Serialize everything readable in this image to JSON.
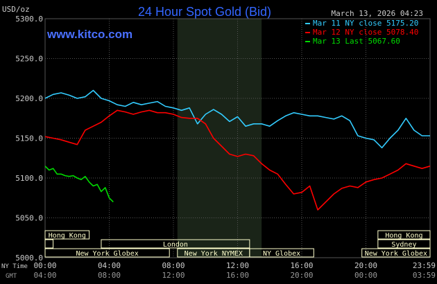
{
  "header": {
    "unit_label": "USD/oz",
    "title": "24 Hour Spot Gold (Bid)",
    "timestamp": "March 13, 2026 04:23",
    "watermark": "www.kitco.com"
  },
  "legend": [
    {
      "label": "Mar 11 NY close 5175.20",
      "color": "#33ccff"
    },
    {
      "label": "Mar 12 NY close 5078.40",
      "color": "#ff0000"
    },
    {
      "label": "Mar 13 Last 5067.60",
      "color": "#00dd00"
    }
  ],
  "footer": {
    "ny_time_label": "NY Time",
    "gmt_label": "GMT"
  },
  "sessions": {
    "row1": [
      {
        "label": "Hong Kong",
        "start": 0.0,
        "end": 2.75
      },
      {
        "label": "Hong Kong",
        "start": 20.75,
        "end": 24.0
      }
    ],
    "row2": [
      {
        "label": "",
        "start": 0.0,
        "end": 0.5
      },
      {
        "label": "London",
        "start": 3.5,
        "end": 12.75
      },
      {
        "label": "Sydney",
        "start": 20.75,
        "end": 24.0
      }
    ],
    "row3": [
      {
        "label": "New York Globex",
        "start": 0.0,
        "end": 7.75
      },
      {
        "label": "New York NYMEX",
        "start": 8.25,
        "end": 12.75
      },
      {
        "label": "NY Globex",
        "start": 12.75,
        "end": 16.75
      },
      {
        "label": "New York Globex",
        "start": 19.75,
        "end": 24.0
      }
    ]
  },
  "colors": {
    "background": "#000000",
    "grid": "#555555",
    "shade": "#1a2418",
    "title": "#3366ff",
    "session_fill": "#ffffcc",
    "session_border": "#999999",
    "text": "#cccccc"
  },
  "chart_data": {
    "type": "line",
    "ylim": [
      5000,
      5300
    ],
    "y_ticks": [
      5000,
      5050,
      5100,
      5150,
      5200,
      5250,
      5300
    ],
    "y_tick_labels": [
      "5000.0",
      "5050.0",
      "5100.0",
      "5150.0",
      "5200.0",
      "5250.0",
      "5300.0"
    ],
    "xlim": [
      0,
      24
    ],
    "x_ticks": [
      0,
      4,
      8,
      12,
      16,
      20,
      24
    ],
    "x_tick_labels": [
      "00:00",
      "04:00",
      "08:00",
      "12:00",
      "16:00",
      "20:00",
      "23:59"
    ],
    "x_tick_labels_gmt": [
      "04:00",
      "08:00",
      "12:00",
      "16:00",
      "20:00",
      "00:00",
      "03:59"
    ],
    "nymex_shade": [
      8.25,
      13.5
    ],
    "grid": true,
    "legend_position": "top-right",
    "series": [
      {
        "name": "Mar 11 NY close 5175.20",
        "color": "#33ccff",
        "x": [
          0,
          0.5,
          1,
          1.5,
          2,
          2.5,
          3,
          3.5,
          4,
          4.5,
          5,
          5.5,
          6,
          6.5,
          7,
          7.5,
          8,
          8.5,
          9,
          9.5,
          10,
          10.5,
          11,
          11.5,
          12,
          12.5,
          13,
          13.5,
          14,
          14.5,
          15,
          15.5,
          16,
          16.5,
          17,
          17.5,
          18,
          18.5,
          19,
          19.5,
          20,
          20.5,
          21,
          21.5,
          22,
          22.5,
          23,
          23.5,
          24
        ],
        "y": [
          5200,
          5205,
          5207,
          5204,
          5200,
          5202,
          5210,
          5200,
          5197,
          5192,
          5190,
          5195,
          5192,
          5194,
          5196,
          5190,
          5188,
          5185,
          5188,
          5168,
          5180,
          5186,
          5180,
          5171,
          5177,
          5165,
          5168,
          5168,
          5165,
          5172,
          5178,
          5182,
          5180,
          5178,
          5178,
          5176,
          5174,
          5178,
          5172,
          5153,
          5150,
          5148,
          5138,
          5150,
          5160,
          5175,
          5160,
          5153,
          5153
        ]
      },
      {
        "name": "Mar 12 NY close 5078.40",
        "color": "#ff0000",
        "x": [
          0,
          0.5,
          1,
          1.5,
          2,
          2.5,
          3,
          3.5,
          4,
          4.5,
          5,
          5.5,
          6,
          6.5,
          7,
          7.5,
          8,
          8.5,
          9,
          9.5,
          10,
          10.5,
          11,
          11.5,
          12,
          12.5,
          13,
          13.5,
          14,
          14.5,
          15,
          15.5,
          16,
          16.5,
          17,
          17.5,
          18,
          18.5,
          19,
          19.5,
          20,
          20.5,
          21,
          21.5,
          22,
          22.5,
          23,
          23.5,
          24
        ],
        "y": [
          5152,
          5150,
          5148,
          5145,
          5142,
          5160,
          5165,
          5170,
          5178,
          5185,
          5183,
          5180,
          5183,
          5185,
          5182,
          5182,
          5180,
          5176,
          5175,
          5175,
          5168,
          5150,
          5140,
          5130,
          5127,
          5130,
          5128,
          5118,
          5110,
          5105,
          5092,
          5080,
          5082,
          5090,
          5060,
          5070,
          5080,
          5087,
          5090,
          5088,
          5095,
          5098,
          5100,
          5105,
          5110,
          5118,
          5115,
          5112,
          5115
        ]
      },
      {
        "name": "Mar 13 Last 5067.60",
        "color": "#00dd00",
        "x": [
          0,
          0.25,
          0.5,
          0.75,
          1,
          1.25,
          1.5,
          1.75,
          2,
          2.25,
          2.5,
          2.75,
          3,
          3.25,
          3.5,
          3.75,
          4,
          4.25
        ],
        "y": [
          5115,
          5110,
          5112,
          5105,
          5105,
          5103,
          5102,
          5103,
          5100,
          5098,
          5102,
          5095,
          5090,
          5092,
          5083,
          5088,
          5075,
          5070
        ]
      }
    ]
  }
}
